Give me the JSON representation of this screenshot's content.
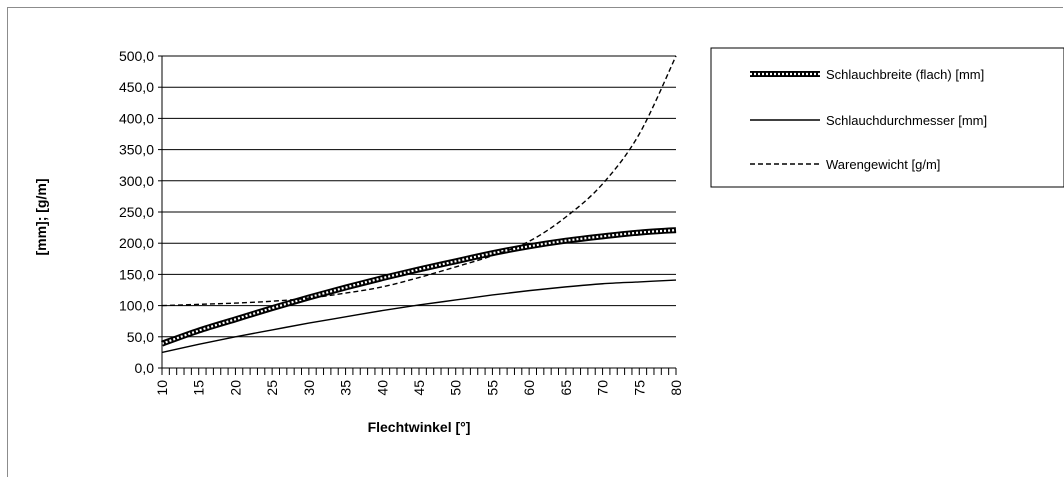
{
  "chart_data": {
    "type": "line",
    "xlabel": "Flechtwinkel [°]",
    "ylabel": "[mm]; [g/m]",
    "xlim": [
      10,
      80
    ],
    "ylim": [
      0,
      500
    ],
    "x_major_ticks": [
      "10",
      "15",
      "20",
      "25",
      "30",
      "35",
      "40",
      "45",
      "50",
      "55",
      "60",
      "65",
      "70",
      "75",
      "80"
    ],
    "y_tick_labels": [
      "0,0",
      "50,0",
      "100,0",
      "150,0",
      "200,0",
      "250,0",
      "300,0",
      "350,0",
      "400,0",
      "450,0",
      "500,0"
    ],
    "grid": "horizontal",
    "legend_position": "right",
    "x": [
      10,
      15,
      20,
      25,
      30,
      35,
      40,
      45,
      50,
      55,
      60,
      65,
      70,
      75,
      80
    ],
    "series": [
      {
        "name": "Schlauchbreite (flach) [mm]",
        "style": "thick-dotted",
        "color": "#000000",
        "values": [
          39,
          60,
          78,
          96,
          113,
          129,
          144,
          158,
          171,
          184,
          195,
          204,
          211,
          217,
          221
        ]
      },
      {
        "name": "Schlauchdurchmesser [mm]",
        "style": "solid",
        "color": "#000000",
        "values": [
          25,
          38,
          50,
          61,
          72,
          82,
          92,
          101,
          109,
          117,
          124,
          130,
          135,
          138,
          141
        ]
      },
      {
        "name": "Warengewicht [g/m]",
        "style": "dashed",
        "color": "#000000",
        "values": [
          100,
          102,
          104,
          107,
          112,
          120,
          130,
          145,
          162,
          180,
          203,
          242,
          295,
          375,
          500
        ]
      }
    ]
  }
}
